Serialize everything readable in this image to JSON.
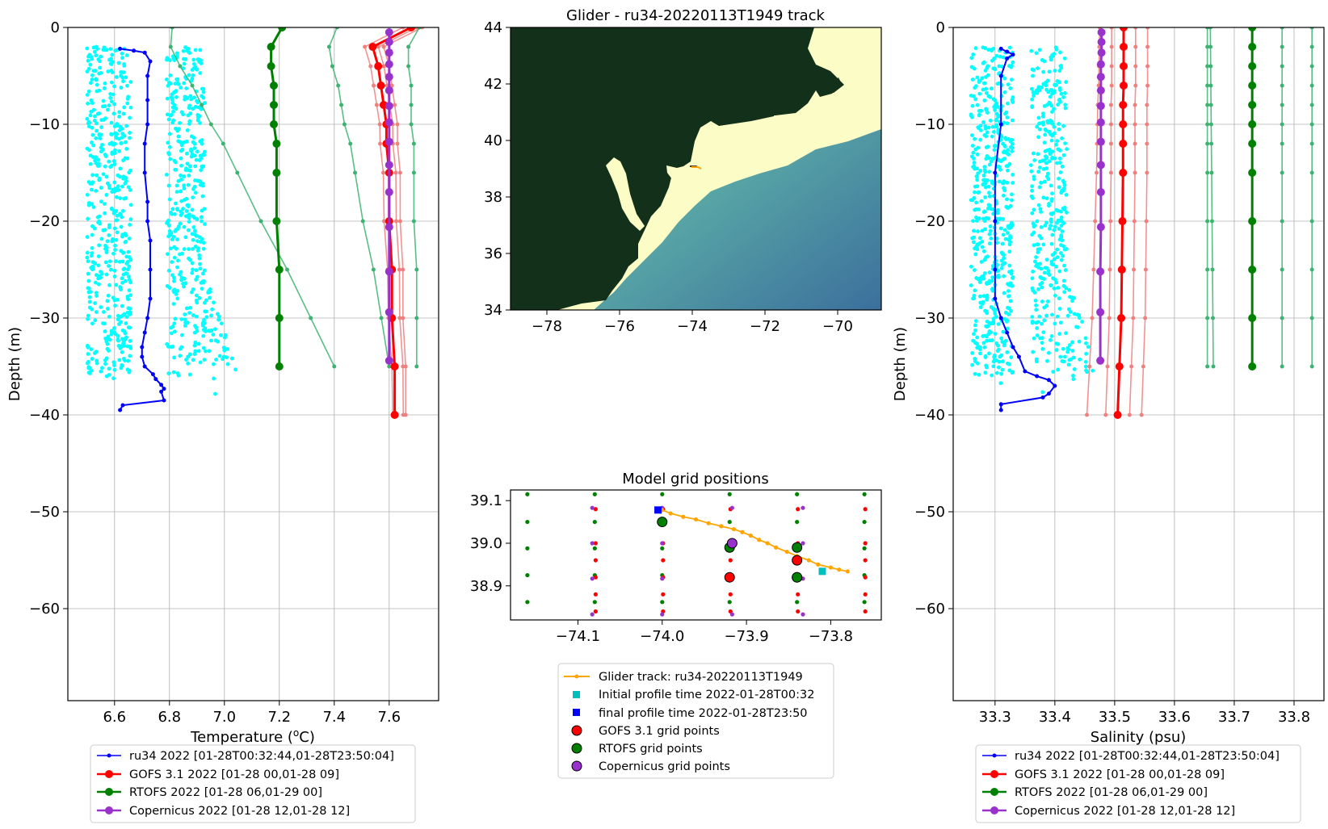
{
  "figure": {
    "map_title": "Glider - ru34-20220113T1949 track",
    "grid_title": "Model grid positions"
  },
  "colors": {
    "glider": "#0000ff",
    "glider_cloud": "#00ffff",
    "gofs": "#ff0000",
    "gofs_light": "#f08080",
    "rtofs": "#008000",
    "rtofs_light": "#3cb371",
    "copernicus": "#9932cc",
    "track": "#ffa500",
    "initial": "#00bfbf",
    "final": "#0000ff"
  },
  "chart_data": [
    {
      "type": "line",
      "xlabel": "Temperature (°C)",
      "ylabel": "Depth (m)",
      "xlim": [
        6.43,
        7.78
      ],
      "ylim": [
        -69.5,
        0
      ],
      "xticks": [
        "6.6",
        "6.8",
        "7.0",
        "7.2",
        "7.4",
        "7.6"
      ],
      "yticks": [
        "0",
        "−10",
        "−20",
        "−30",
        "−40",
        "−50",
        "−60"
      ],
      "grid": true,
      "legend_position": "below",
      "series": [
        {
          "name": "ru34 2022 [01-28T00:32:44,01-28T23:50:04]",
          "color": "blue",
          "points": [
            [
              6.62,
              -2.2
            ],
            [
              6.67,
              -2.4
            ],
            [
              6.71,
              -2.6
            ],
            [
              6.73,
              -3.5
            ],
            [
              6.72,
              -5
            ],
            [
              6.72,
              -7.5
            ],
            [
              6.72,
              -10
            ],
            [
              6.71,
              -12
            ],
            [
              6.71,
              -15
            ],
            [
              6.72,
              -18
            ],
            [
              6.72,
              -20
            ],
            [
              6.73,
              -22
            ],
            [
              6.73,
              -25
            ],
            [
              6.73,
              -28
            ],
            [
              6.72,
              -30
            ],
            [
              6.71,
              -31.5
            ],
            [
              6.7,
              -33
            ],
            [
              6.7,
              -34
            ],
            [
              6.71,
              -35
            ],
            [
              6.74,
              -35.8
            ],
            [
              6.75,
              -36.3
            ],
            [
              6.77,
              -36.9
            ],
            [
              6.78,
              -37.3
            ],
            [
              6.77,
              -37.6
            ],
            [
              6.78,
              -38.5
            ],
            [
              6.63,
              -39
            ],
            [
              6.62,
              -39.5
            ]
          ]
        },
        {
          "name": "GOFS 3.1 2022 [01-28 00,01-28 09]",
          "color": "red",
          "points": [
            [
              7.68,
              0
            ],
            [
              7.54,
              -2
            ],
            [
              7.56,
              -4
            ],
            [
              7.57,
              -6
            ],
            [
              7.58,
              -8
            ],
            [
              7.59,
              -10
            ],
            [
              7.59,
              -12
            ],
            [
              7.6,
              -15
            ],
            [
              7.6,
              -20
            ],
            [
              7.61,
              -25
            ],
            [
              7.61,
              -30
            ],
            [
              7.62,
              -35
            ],
            [
              7.62,
              -40
            ]
          ]
        },
        {
          "name": "RTOFS 2022 [01-28 06,01-29 00]",
          "color": "green",
          "points": [
            [
              7.21,
              0
            ],
            [
              7.17,
              -2
            ],
            [
              7.17,
              -4
            ],
            [
              7.18,
              -6
            ],
            [
              7.18,
              -8
            ],
            [
              7.18,
              -10
            ],
            [
              7.19,
              -12
            ],
            [
              7.19,
              -15
            ],
            [
              7.19,
              -20
            ],
            [
              7.2,
              -25
            ],
            [
              7.2,
              -30
            ],
            [
              7.2,
              -35
            ]
          ]
        },
        {
          "name": "Copernicus 2022 [01-28 12,01-28 12]",
          "color": "purple",
          "points": [
            [
              7.6,
              -0.5
            ],
            [
              7.6,
              -1.5
            ],
            [
              7.6,
              -2.6
            ],
            [
              7.6,
              -3.8
            ],
            [
              7.6,
              -5.1
            ],
            [
              7.6,
              -6.5
            ],
            [
              7.6,
              -8.1
            ],
            [
              7.6,
              -9.8
            ],
            [
              7.6,
              -11.8
            ],
            [
              7.6,
              -14.2
            ],
            [
              7.6,
              -17
            ],
            [
              7.6,
              -20.6
            ],
            [
              7.6,
              -25.2
            ],
            [
              7.6,
              -29.4
            ],
            [
              7.6,
              -34.4
            ]
          ]
        }
      ]
    },
    {
      "type": "scatter",
      "title": "Glider - ru34-20220113T1949 track",
      "xlim": [
        -79,
        -68.8
      ],
      "ylim": [
        34,
        44
      ],
      "xticks": [
        "−78",
        "−76",
        "−74",
        "−72",
        "−70"
      ],
      "yticks": [
        "34",
        "36",
        "38",
        "40",
        "42",
        "44"
      ],
      "track": [
        [
          -74.05,
          39.0
        ],
        [
          -73.8,
          38.95
        ]
      ]
    },
    {
      "type": "scatter",
      "title": "Model grid positions",
      "xlim": [
        -74.18,
        -73.74
      ],
      "ylim": [
        38.82,
        39.125
      ],
      "xticks": [
        "−74.1",
        "−74.0",
        "−73.9",
        "−73.8"
      ],
      "yticks": [
        "38.9",
        "39.0",
        "39.1"
      ],
      "legend_position": "below",
      "legend": [
        "Glider track: ru34-20220113T1949",
        "Initial profile time 2022-01-28T00:32",
        "final profile time 2022-01-28T23:50",
        "GOFS 3.1 grid points",
        "RTOFS grid points",
        "Copernicus grid points"
      ],
      "track": [
        [
          -74.0,
          39.078
        ],
        [
          -73.99,
          39.07
        ],
        [
          -73.975,
          39.062
        ],
        [
          -73.96,
          39.056
        ],
        [
          -73.945,
          39.047
        ],
        [
          -73.93,
          39.04
        ],
        [
          -73.915,
          39.033
        ],
        [
          -73.905,
          39.026
        ],
        [
          -73.895,
          39.018
        ],
        [
          -73.885,
          39.008
        ],
        [
          -73.875,
          39.0
        ],
        [
          -73.865,
          38.99
        ],
        [
          -73.852,
          38.98
        ],
        [
          -73.84,
          38.97
        ],
        [
          -73.826,
          38.96
        ],
        [
          -73.815,
          38.95
        ],
        [
          -73.8,
          38.943
        ],
        [
          -73.79,
          38.938
        ],
        [
          -73.78,
          38.934
        ]
      ],
      "initial": [
        -73.81,
        38.934
      ],
      "final": [
        -74.005,
        39.078
      ],
      "gofs_selected": [
        [
          -73.84,
          38.96
        ],
        [
          -73.84,
          38.92
        ],
        [
          -73.92,
          38.92
        ]
      ],
      "rtofs_selected": [
        [
          -74.0,
          39.05
        ],
        [
          -73.92,
          38.99
        ],
        [
          -73.84,
          38.99
        ],
        [
          -73.84,
          38.92
        ]
      ],
      "copernicus_selected": [
        [
          -73.917,
          39.0
        ]
      ]
    },
    {
      "type": "line",
      "xlabel": "Salinity (psu)",
      "ylabel": "Depth (m)",
      "xlim": [
        33.23,
        33.85
      ],
      "ylim": [
        -69.5,
        0
      ],
      "xticks": [
        "33.3",
        "33.4",
        "33.5",
        "33.6",
        "33.7",
        "33.8"
      ],
      "yticks": [
        "0",
        "−10",
        "−20",
        "−30",
        "−40",
        "−50",
        "−60"
      ],
      "grid": true,
      "legend_position": "below",
      "series": [
        {
          "name": "ru34 2022 [01-28T00:32:44,01-28T23:50:04]",
          "color": "blue",
          "points": [
            [
              33.31,
              -2.2
            ],
            [
              33.32,
              -2.5
            ],
            [
              33.33,
              -2.8
            ],
            [
              33.32,
              -3.2
            ],
            [
              33.31,
              -5
            ],
            [
              33.31,
              -10
            ],
            [
              33.3,
              -15
            ],
            [
              33.3,
              -20
            ],
            [
              33.3,
              -25
            ],
            [
              33.3,
              -28
            ],
            [
              33.31,
              -30
            ],
            [
              33.32,
              -31.5
            ],
            [
              33.33,
              -33
            ],
            [
              33.34,
              -34
            ],
            [
              33.35,
              -35.5
            ],
            [
              33.37,
              -36
            ],
            [
              33.39,
              -36.4
            ],
            [
              33.4,
              -37
            ],
            [
              33.39,
              -37.8
            ],
            [
              33.38,
              -38.2
            ],
            [
              33.31,
              -38.9
            ],
            [
              33.31,
              -39.5
            ]
          ]
        },
        {
          "name": "GOFS 3.1 2022 [01-28 00,01-28 09]",
          "color": "red",
          "points": [
            [
              33.515,
              0
            ],
            [
              33.515,
              -2
            ],
            [
              33.515,
              -4
            ],
            [
              33.515,
              -6
            ],
            [
              33.514,
              -8
            ],
            [
              33.514,
              -10
            ],
            [
              33.514,
              -12
            ],
            [
              33.514,
              -15
            ],
            [
              33.513,
              -20
            ],
            [
              33.512,
              -25
            ],
            [
              33.511,
              -30
            ],
            [
              33.508,
              -35
            ],
            [
              33.505,
              -40
            ]
          ]
        },
        {
          "name": "RTOFS 2022 [01-28 06,01-29 00]",
          "color": "green",
          "points": [
            [
              33.73,
              0
            ],
            [
              33.73,
              -2
            ],
            [
              33.73,
              -4
            ],
            [
              33.73,
              -6
            ],
            [
              33.73,
              -8
            ],
            [
              33.73,
              -10
            ],
            [
              33.73,
              -12
            ],
            [
              33.73,
              -15
            ],
            [
              33.73,
              -20
            ],
            [
              33.73,
              -25
            ],
            [
              33.73,
              -30
            ],
            [
              33.73,
              -35
            ]
          ]
        },
        {
          "name": "Copernicus 2022 [01-28 12,01-28 12]",
          "color": "purple",
          "points": [
            [
              33.478,
              -0.5
            ],
            [
              33.478,
              -1.5
            ],
            [
              33.478,
              -2.6
            ],
            [
              33.477,
              -3.8
            ],
            [
              33.477,
              -5.1
            ],
            [
              33.477,
              -6.5
            ],
            [
              33.477,
              -8.1
            ],
            [
              33.477,
              -9.8
            ],
            [
              33.477,
              -11.8
            ],
            [
              33.477,
              -14.2
            ],
            [
              33.477,
              -17
            ],
            [
              33.477,
              -20.6
            ],
            [
              33.476,
              -25.2
            ],
            [
              33.476,
              -29.4
            ],
            [
              33.476,
              -34.4
            ]
          ]
        }
      ]
    }
  ]
}
